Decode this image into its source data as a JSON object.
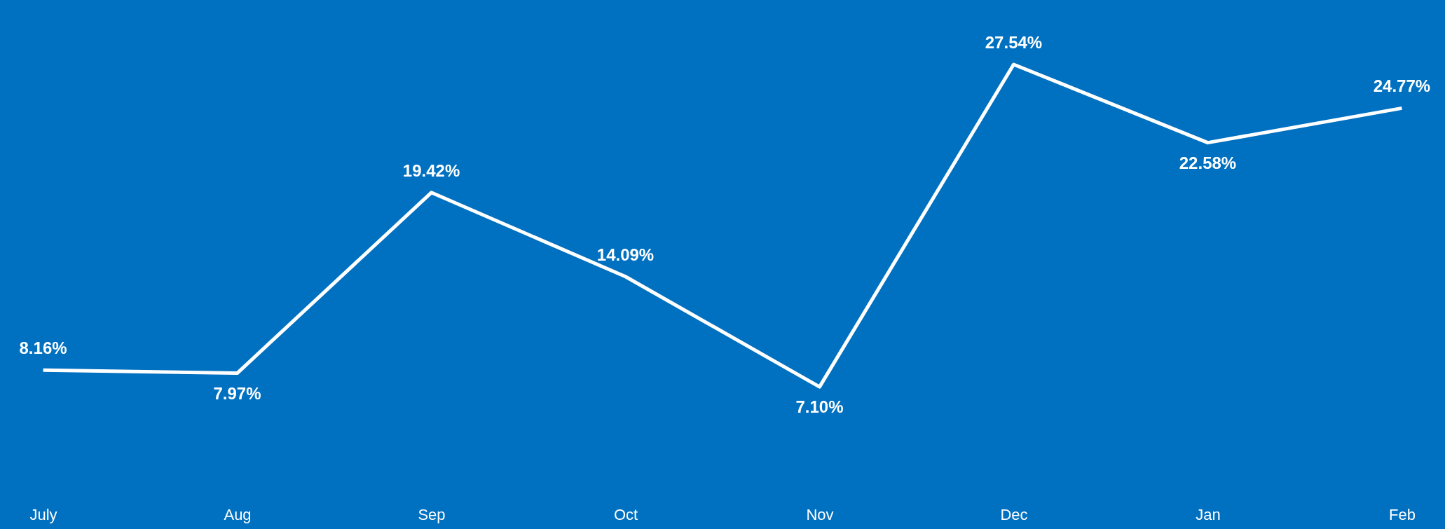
{
  "chart_data": {
    "type": "line",
    "categories": [
      "July",
      "Aug",
      "Sep",
      "Oct",
      "Nov",
      "Dec",
      "Jan",
      "Feb"
    ],
    "series": [
      {
        "color": "#ffffff",
        "values": [
          8.16,
          7.97,
          19.42,
          14.09,
          7.1,
          27.54,
          22.58,
          24.77
        ],
        "value_labels": [
          "8.16%",
          "7.97%",
          "19.42%",
          "14.09%",
          "7.10%",
          "27.54%",
          "22.58%",
          "24.77%"
        ]
      }
    ],
    "grid": false,
    "line_style": "solid"
  }
}
